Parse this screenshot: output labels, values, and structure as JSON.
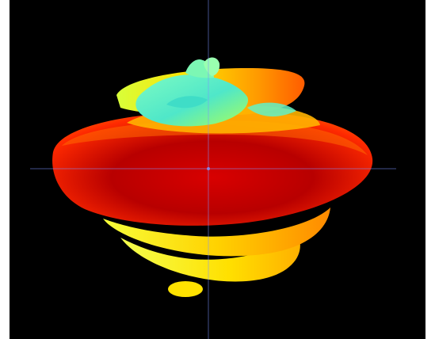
{
  "viewer": {
    "background": "#000000",
    "frame_color": "#ffffff",
    "axis_color": "#8aa0ff"
  },
  "icons": {
    "radiation_pattern": "3d-radiation-pattern-surface",
    "axes": "coordinate-axes-cross"
  },
  "colors": {
    "max_gain": "#c40000",
    "high_gain": "#ff5a00",
    "mid_gain": "#ffd400",
    "low_gain": "#b8ff4a",
    "min_gain": "#5cf2c8"
  },
  "labels": {
    "x_axis_label": "",
    "y_axis_label": "",
    "z_axis_label": ""
  }
}
